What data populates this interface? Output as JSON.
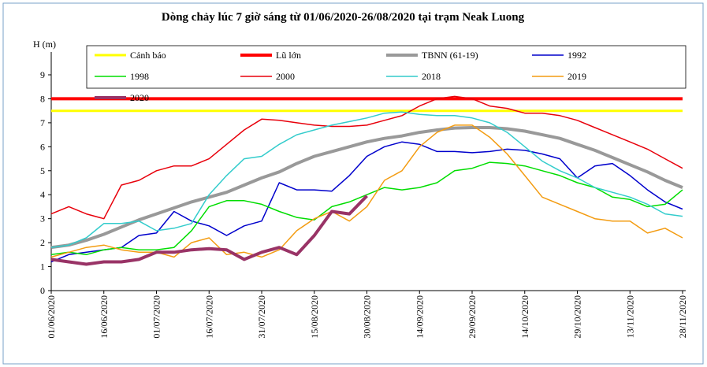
{
  "chart_data": {
    "type": "line",
    "title": "Dòng chảy lúc 7 giờ sáng từ 01/06/2020-26/08/2020 tại trạm Neak Luong",
    "y_label": "H (m)",
    "categories": [
      "01/06/2020",
      null,
      null,
      "16/06/2020",
      null,
      null,
      "01/07/2020",
      null,
      null,
      "16/07/2020",
      null,
      null,
      "31/07/2020",
      null,
      null,
      "15/08/2020",
      null,
      null,
      "30/08/2020",
      null,
      null,
      "14/09/2020",
      null,
      null,
      "29/09/2020",
      null,
      null,
      "14/10/2020",
      null,
      null,
      "29/10/2020",
      null,
      null,
      "13/11/2020",
      null,
      null,
      "28/11/2020"
    ],
    "ylim": [
      0,
      9
    ],
    "yticks": [
      0,
      1,
      2,
      3,
      4,
      5,
      6,
      7,
      8,
      9
    ],
    "series": [
      {
        "name": "Cảnh báo",
        "color": "#ffff00",
        "values": [
          7.5,
          7.5,
          7.5,
          7.5,
          7.5,
          7.5,
          7.5,
          7.5,
          7.5,
          7.5,
          7.5,
          7.5,
          7.5,
          7.5,
          7.5,
          7.5,
          7.5,
          7.5,
          7.5,
          7.5,
          7.5,
          7.5,
          7.5,
          7.5,
          7.5,
          7.5,
          7.5,
          7.5,
          7.5,
          7.5,
          7.5,
          7.5,
          7.5,
          7.5,
          7.5,
          7.5,
          7.5
        ]
      },
      {
        "name": "Lũ lớn",
        "color": "#ff0000",
        "values": [
          8,
          8,
          8,
          8,
          8,
          8,
          8,
          8,
          8,
          8,
          8,
          8,
          8,
          8,
          8,
          8,
          8,
          8,
          8,
          8,
          8,
          8,
          8,
          8,
          8,
          8,
          8,
          8,
          8,
          8,
          8,
          8,
          8,
          8,
          8,
          8,
          8
        ]
      },
      {
        "name": "TBNN (61-19)",
        "color": "#999999",
        "values": [
          1.8,
          1.9,
          2.1,
          2.35,
          2.65,
          2.95,
          3.2,
          3.45,
          3.7,
          3.9,
          4.1,
          4.4,
          4.7,
          4.95,
          5.3,
          5.6,
          5.8,
          6.0,
          6.2,
          6.35,
          6.45,
          6.6,
          6.7,
          6.78,
          6.8,
          6.8,
          6.75,
          6.65,
          6.5,
          6.35,
          6.1,
          5.85,
          5.55,
          5.25,
          4.95,
          4.6,
          4.3
        ]
      },
      {
        "name": "1992",
        "color": "#0000cc",
        "values": [
          1.2,
          1.5,
          1.6,
          1.7,
          1.8,
          2.3,
          2.4,
          3.3,
          2.9,
          2.7,
          2.3,
          2.7,
          2.9,
          4.5,
          4.2,
          4.2,
          4.15,
          4.8,
          5.6,
          6.0,
          6.2,
          6.1,
          5.8,
          5.8,
          5.75,
          5.8,
          5.9,
          5.85,
          5.7,
          5.5,
          4.7,
          5.2,
          5.3,
          4.8,
          4.2,
          3.7,
          3.4
        ]
      },
      {
        "name": "1998",
        "color": "#00dd00",
        "values": [
          1.5,
          1.6,
          1.5,
          1.7,
          1.8,
          1.7,
          1.7,
          1.8,
          2.5,
          3.5,
          3.75,
          3.75,
          3.6,
          3.3,
          3.05,
          2.95,
          3.5,
          3.7,
          4.0,
          4.3,
          4.2,
          4.3,
          4.5,
          5.0,
          5.1,
          5.35,
          5.3,
          5.2,
          5.0,
          4.8,
          4.5,
          4.3,
          3.9,
          3.8,
          3.5,
          3.6,
          4.2
        ]
      },
      {
        "name": "2000",
        "color": "#e8000b",
        "values": [
          3.2,
          3.5,
          3.2,
          3.0,
          4.4,
          4.6,
          5.0,
          5.2,
          5.2,
          5.5,
          6.1,
          6.7,
          7.15,
          7.1,
          7.0,
          6.9,
          6.85,
          6.85,
          6.9,
          7.1,
          7.3,
          7.7,
          8.0,
          8.1,
          8.0,
          7.7,
          7.6,
          7.4,
          7.4,
          7.3,
          7.1,
          6.8,
          6.5,
          6.2,
          5.9,
          5.5,
          5.1
        ]
      },
      {
        "name": "2018",
        "color": "#33cccc",
        "values": [
          1.8,
          1.9,
          2.2,
          2.8,
          2.8,
          2.9,
          2.5,
          2.6,
          2.8,
          4.0,
          4.8,
          5.5,
          5.6,
          6.1,
          6.5,
          6.7,
          6.9,
          7.05,
          7.2,
          7.4,
          7.45,
          7.35,
          7.3,
          7.3,
          7.2,
          7.0,
          6.6,
          6.0,
          5.4,
          5.0,
          4.7,
          4.3,
          4.1,
          3.9,
          3.6,
          3.2,
          3.1
        ]
      },
      {
        "name": "2019",
        "color": "#f39c12",
        "values": [
          1.4,
          1.6,
          1.8,
          1.9,
          1.7,
          1.6,
          1.6,
          1.4,
          2.0,
          2.2,
          1.5,
          1.6,
          1.4,
          1.7,
          2.5,
          3.0,
          3.3,
          2.9,
          3.5,
          4.6,
          5.0,
          6.0,
          6.6,
          6.9,
          6.9,
          6.4,
          5.7,
          4.8,
          3.9,
          3.6,
          3.3,
          3.0,
          2.9,
          2.9,
          2.4,
          2.6,
          2.2
        ]
      },
      {
        "name": "2020",
        "color": "#993366",
        "values": [
          1.3,
          1.2,
          1.1,
          1.2,
          1.2,
          1.3,
          1.6,
          1.6,
          1.7,
          1.75,
          1.7,
          1.3,
          1.6,
          1.8,
          1.5,
          2.3,
          3.3,
          3.2,
          3.95,
          null,
          null,
          null,
          null,
          null,
          null,
          null,
          null,
          null,
          null,
          null,
          null,
          null,
          null,
          null,
          null,
          null,
          null
        ]
      }
    ]
  }
}
